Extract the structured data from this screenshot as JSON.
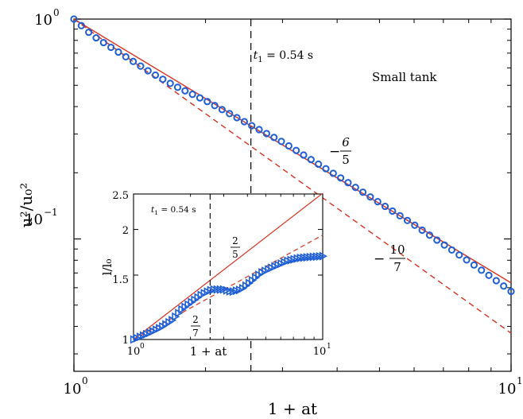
{
  "chart_data": [
    {
      "type": "scatter",
      "panel": "main",
      "xlabel": "1 + at",
      "ylabel": "u²/u₀²",
      "x_scale": "log",
      "y_scale": "log",
      "xlim": [
        1,
        10
      ],
      "ylim": [
        0.025,
        1.0
      ],
      "x_ticks": [
        {
          "value": 1,
          "base": "10",
          "exp": "0"
        },
        {
          "value": 10,
          "base": "10",
          "exp": "1"
        }
      ],
      "y_ticks": [
        {
          "value": 1,
          "base": "10",
          "exp": "0"
        },
        {
          "value": 0.1,
          "base": "10",
          "exp": "−1"
        }
      ],
      "annotation_text": "Small tank",
      "vline": {
        "x": 2.54,
        "label_sym": "t",
        "label_sub": "1",
        "label_rest": " = 0.54 s"
      },
      "series": [
        {
          "marker": "circle",
          "color": "#1f5fd6",
          "x_start": 1.0,
          "x_end": 10.0,
          "count": 60,
          "points": [
            [
              1.0,
              1.0
            ],
            [
              1.1,
              0.845
            ],
            [
              1.2,
              0.756
            ],
            [
              1.3,
              0.683
            ],
            [
              1.5,
              0.571
            ],
            [
              1.7,
              0.497
            ],
            [
              2.0,
              0.426
            ],
            [
              2.54,
              0.329
            ],
            [
              3.0,
              0.276
            ],
            [
              4.0,
              0.194
            ],
            [
              5.0,
              0.146
            ],
            [
              6.0,
              0.116
            ],
            [
              7.0,
              0.0945
            ],
            [
              8.0,
              0.0791
            ],
            [
              9.0,
              0.0672
            ],
            [
              10.0,
              0.0577
            ]
          ]
        }
      ],
      "reference_lines": [
        {
          "style": "solid",
          "color": "#d9301f",
          "slope_num": "6",
          "slope_den": "5",
          "exponent": -1.2
        },
        {
          "style": "dashed",
          "color": "#d9301f",
          "slope_num": "10",
          "slope_den": "7",
          "exponent": -1.4286
        }
      ]
    },
    {
      "type": "scatter",
      "panel": "inset",
      "xlabel": "1 + at",
      "ylabel": "l/l₀",
      "x_scale": "log",
      "y_scale": "log",
      "xlim": [
        1,
        10
      ],
      "ylim": [
        1,
        2.5
      ],
      "x_ticks": [
        {
          "value": 1,
          "base": "10",
          "exp": "0"
        },
        {
          "value": 10,
          "base": "10",
          "exp": "1"
        }
      ],
      "y_ticks": [
        {
          "value": 1,
          "label": "1"
        },
        {
          "value": 1.5,
          "label": "1.5"
        },
        {
          "value": 2,
          "label": "2"
        },
        {
          "value": 2.5,
          "label": "2.5"
        }
      ],
      "vline": {
        "x": 2.54,
        "label_sym": "t",
        "label_sub": "1",
        "label_rest": " = 0.54 s"
      },
      "series": [
        {
          "marker": "triangle-right",
          "color": "#1f5fd6",
          "x_start": 1.0,
          "x_end": 10.0,
          "count": 60,
          "points": [
            [
              1.0,
              1.0
            ],
            [
              1.2,
              1.04
            ],
            [
              1.4,
              1.08
            ],
            [
              1.6,
              1.13
            ],
            [
              1.8,
              1.21
            ],
            [
              2.0,
              1.26
            ],
            [
              2.3,
              1.33
            ],
            [
              2.6,
              1.37
            ],
            [
              3.0,
              1.37
            ],
            [
              3.3,
              1.35
            ],
            [
              3.7,
              1.37
            ],
            [
              4.1,
              1.43
            ],
            [
              4.7,
              1.52
            ],
            [
              5.5,
              1.58
            ],
            [
              6.5,
              1.64
            ],
            [
              7.5,
              1.67
            ],
            [
              8.5,
              1.68
            ],
            [
              10.0,
              1.69
            ]
          ]
        }
      ],
      "reference_lines": [
        {
          "style": "solid",
          "color": "#d9301f",
          "slope_num": "2",
          "slope_den": "5",
          "exponent": 0.4
        },
        {
          "style": "dashed",
          "color": "#d9301f",
          "slope_num": "2",
          "slope_den": "7",
          "exponent": 0.2857
        }
      ]
    }
  ]
}
